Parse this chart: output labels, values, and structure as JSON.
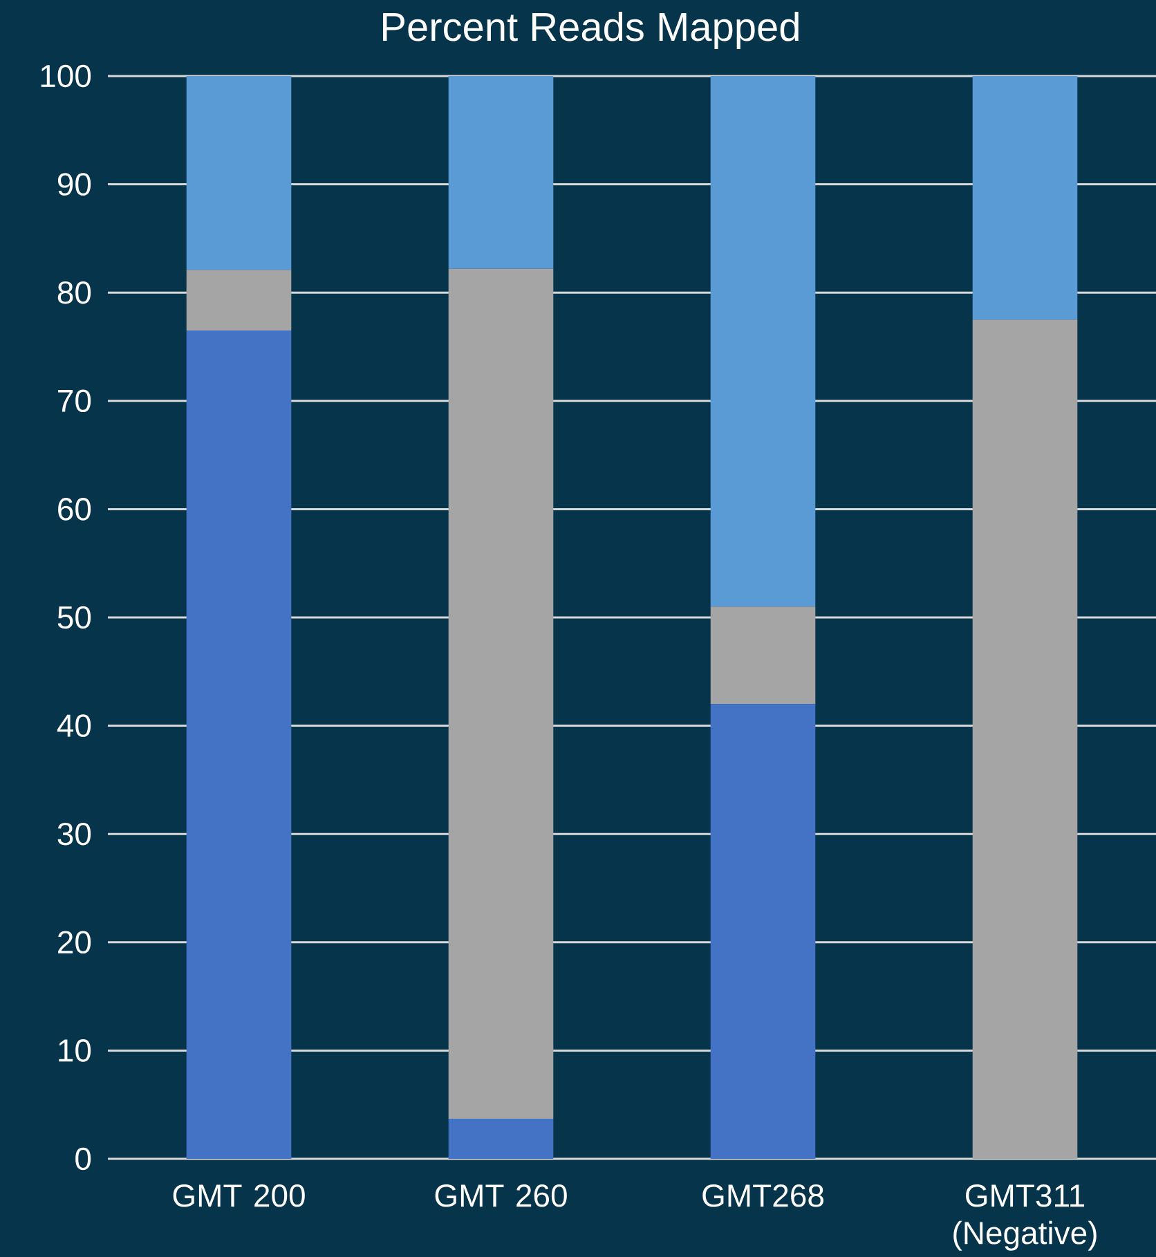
{
  "chart_data": {
    "type": "bar",
    "title": "Percent Reads Mapped",
    "categories": [
      "GMT 200",
      "GMT 260",
      "GMT268",
      "GMT311 (Negative)"
    ],
    "stacked": true,
    "series": [
      {
        "color": "#4472c4",
        "values": [
          76.5,
          3.7,
          42.0,
          0
        ]
      },
      {
        "color": "#a5a5a5",
        "values": [
          5.6,
          78.5,
          9.0,
          77.5
        ]
      },
      {
        "color": "#5b9bd5",
        "values": [
          17.9,
          17.8,
          49.0,
          22.5
        ]
      }
    ],
    "ylim": [
      0,
      100
    ],
    "yticks": [
      0,
      10,
      20,
      30,
      40,
      50,
      60,
      70,
      80,
      90,
      100
    ],
    "grid": "y"
  }
}
